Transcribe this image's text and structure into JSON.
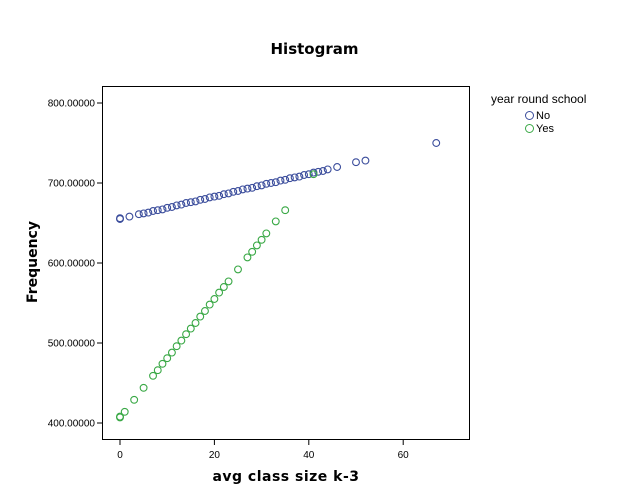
{
  "chart_data": {
    "type": "scatter",
    "title": "Histogram",
    "xlabel": "avg class size k-3",
    "ylabel": "Frequency",
    "xlim": [
      -3,
      75
    ],
    "ylim": [
      380,
      822
    ],
    "x_ticks": [
      0,
      20,
      40,
      60
    ],
    "y_ticks": [
      400,
      500,
      600,
      700,
      800
    ],
    "y_tick_labels": [
      "400.00000",
      "500.00000",
      "600.00000",
      "700.00000",
      "800.00000"
    ],
    "grid": false,
    "legend": {
      "title": "year round school",
      "position": "right"
    },
    "series": [
      {
        "name": "No",
        "color": "#3b4d9c",
        "points": [
          [
            0,
            655
          ],
          [
            0,
            656
          ],
          [
            2,
            658
          ],
          [
            4,
            661
          ],
          [
            5,
            662
          ],
          [
            6,
            663
          ],
          [
            7,
            665
          ],
          [
            8,
            666
          ],
          [
            9,
            667
          ],
          [
            10,
            669
          ],
          [
            11,
            670
          ],
          [
            12,
            672
          ],
          [
            13,
            673
          ],
          [
            14,
            675
          ],
          [
            15,
            676
          ],
          [
            16,
            677
          ],
          [
            17,
            679
          ],
          [
            18,
            680
          ],
          [
            19,
            682
          ],
          [
            20,
            683
          ],
          [
            21,
            684
          ],
          [
            22,
            686
          ],
          [
            23,
            687
          ],
          [
            24,
            689
          ],
          [
            25,
            690
          ],
          [
            26,
            692
          ],
          [
            27,
            693
          ],
          [
            28,
            694
          ],
          [
            29,
            696
          ],
          [
            30,
            697
          ],
          [
            31,
            699
          ],
          [
            32,
            700
          ],
          [
            33,
            701
          ],
          [
            34,
            703
          ],
          [
            35,
            704
          ],
          [
            36,
            706
          ],
          [
            37,
            707
          ],
          [
            38,
            708
          ],
          [
            39,
            710
          ],
          [
            40,
            711
          ],
          [
            41,
            713
          ],
          [
            42,
            714
          ],
          [
            43,
            715
          ],
          [
            44,
            717
          ],
          [
            46,
            720
          ],
          [
            50,
            726
          ],
          [
            52,
            728
          ],
          [
            67,
            750
          ]
        ]
      },
      {
        "name": "Yes",
        "color": "#39a845",
        "points": [
          [
            0,
            407
          ],
          [
            0,
            408
          ],
          [
            1,
            414
          ],
          [
            3,
            429
          ],
          [
            5,
            444
          ],
          [
            7,
            459
          ],
          [
            8,
            466
          ],
          [
            9,
            474
          ],
          [
            10,
            481
          ],
          [
            11,
            488
          ],
          [
            12,
            496
          ],
          [
            13,
            503
          ],
          [
            14,
            511
          ],
          [
            15,
            518
          ],
          [
            16,
            525
          ],
          [
            17,
            533
          ],
          [
            18,
            540
          ],
          [
            19,
            548
          ],
          [
            20,
            555
          ],
          [
            21,
            563
          ],
          [
            22,
            570
          ],
          [
            23,
            577
          ],
          [
            25,
            592
          ],
          [
            27,
            607
          ],
          [
            28,
            614
          ],
          [
            29,
            622
          ],
          [
            30,
            629
          ],
          [
            31,
            637
          ],
          [
            33,
            652
          ],
          [
            35,
            666
          ],
          [
            41,
            711
          ]
        ]
      }
    ]
  },
  "header": {
    "title": "Histogram"
  },
  "axes": {
    "x_label": "avg class size k-3",
    "y_label": "Frequency"
  },
  "legend": {
    "title": "year round school",
    "items": [
      {
        "label": "No",
        "color": "#3b4d9c"
      },
      {
        "label": "Yes",
        "color": "#39a845"
      }
    ]
  }
}
